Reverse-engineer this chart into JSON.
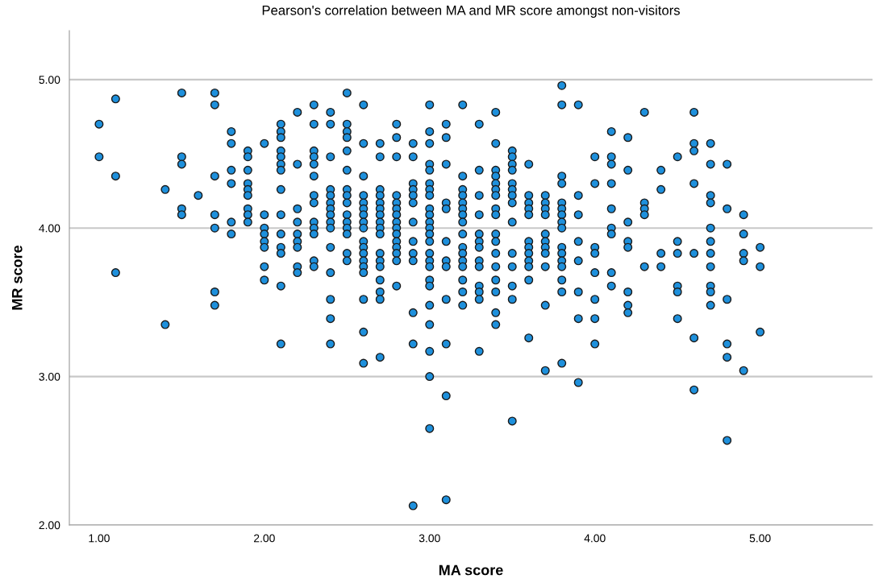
{
  "chart_data": {
    "type": "scatter",
    "title": "Pearson's correlation between MA and MR score amongst non-visitors",
    "xlabel": "MA score",
    "ylabel": "MR score",
    "xlim": [
      0.82,
      5.68
    ],
    "ylim": [
      2.0,
      5.33
    ],
    "xticks": [
      {
        "value": 1,
        "label": "1.00"
      },
      {
        "value": 2,
        "label": "2.00"
      },
      {
        "value": 3,
        "label": "3.00"
      },
      {
        "value": 4,
        "label": "4.00"
      },
      {
        "value": 5,
        "label": "5.00"
      }
    ],
    "yticks": [
      {
        "value": 2,
        "label": "2.00"
      },
      {
        "value": 3,
        "label": "3.00"
      },
      {
        "value": 4,
        "label": "4.00"
      },
      {
        "value": 5,
        "label": "5.00"
      }
    ],
    "grid": "y",
    "marker": "circle",
    "legend": false,
    "series": [
      {
        "color": "#1e90dc",
        "x": [
          1.0,
          1.0,
          1.1,
          1.1,
          1.1,
          1.4,
          1.4,
          1.5,
          1.5,
          1.5,
          1.5,
          1.5,
          1.6,
          1.7,
          1.7,
          1.7,
          1.7,
          1.7,
          1.7,
          1.7,
          1.8,
          1.8,
          1.8,
          1.8,
          1.8,
          1.8,
          1.9,
          1.9,
          1.9,
          1.9,
          1.9,
          1.9,
          1.9,
          1.9,
          1.9,
          2.0,
          2.0,
          2.0,
          2.0,
          2.0,
          2.0,
          2.0,
          2.0,
          2.1,
          2.1,
          2.1,
          2.1,
          2.1,
          2.1,
          2.1,
          2.1,
          2.1,
          2.1,
          2.1,
          2.1,
          2.1,
          2.1,
          2.2,
          2.2,
          2.2,
          2.2,
          2.2,
          2.2,
          2.2,
          2.2,
          2.2,
          2.3,
          2.3,
          2.3,
          2.3,
          2.3,
          2.3,
          2.3,
          2.3,
          2.3,
          2.3,
          2.3,
          2.3,
          2.3,
          2.4,
          2.4,
          2.4,
          2.4,
          2.4,
          2.4,
          2.4,
          2.4,
          2.4,
          2.4,
          2.4,
          2.4,
          2.4,
          2.4,
          2.4,
          2.5,
          2.5,
          2.5,
          2.5,
          2.5,
          2.5,
          2.5,
          2.5,
          2.5,
          2.5,
          2.5,
          2.5,
          2.5,
          2.5,
          2.5,
          2.6,
          2.6,
          2.6,
          2.6,
          2.6,
          2.6,
          2.6,
          2.6,
          2.6,
          2.6,
          2.6,
          2.6,
          2.6,
          2.6,
          2.6,
          2.6,
          2.6,
          2.6,
          2.7,
          2.7,
          2.7,
          2.7,
          2.7,
          2.7,
          2.7,
          2.7,
          2.7,
          2.7,
          2.7,
          2.7,
          2.7,
          2.7,
          2.7,
          2.7,
          2.7,
          2.8,
          2.8,
          2.8,
          2.8,
          2.8,
          2.8,
          2.8,
          2.8,
          2.8,
          2.8,
          2.8,
          2.8,
          2.8,
          2.8,
          2.8,
          2.9,
          2.9,
          2.9,
          2.9,
          2.9,
          2.9,
          2.9,
          2.9,
          2.9,
          2.9,
          2.9,
          2.9,
          2.9,
          3.0,
          3.0,
          3.0,
          3.0,
          3.0,
          3.0,
          3.0,
          3.0,
          3.0,
          3.0,
          3.0,
          3.0,
          3.0,
          3.0,
          3.0,
          3.0,
          3.0,
          3.0,
          3.0,
          3.0,
          3.0,
          3.0,
          3.0,
          3.0,
          3.1,
          3.1,
          3.1,
          3.1,
          3.1,
          3.1,
          3.1,
          3.1,
          3.1,
          3.1,
          3.1,
          3.1,
          3.2,
          3.2,
          3.2,
          3.2,
          3.2,
          3.2,
          3.2,
          3.2,
          3.2,
          3.2,
          3.2,
          3.2,
          3.2,
          3.2,
          3.2,
          3.2,
          3.3,
          3.3,
          3.3,
          3.3,
          3.3,
          3.3,
          3.3,
          3.3,
          3.3,
          3.3,
          3.3,
          3.3,
          3.3,
          3.4,
          3.4,
          3.4,
          3.4,
          3.4,
          3.4,
          3.4,
          3.4,
          3.4,
          3.4,
          3.4,
          3.4,
          3.4,
          3.4,
          3.4,
          3.4,
          3.4,
          3.5,
          3.5,
          3.5,
          3.5,
          3.5,
          3.5,
          3.5,
          3.5,
          3.5,
          3.5,
          3.5,
          3.5,
          3.5,
          3.5,
          3.6,
          3.6,
          3.6,
          3.6,
          3.6,
          3.6,
          3.6,
          3.6,
          3.6,
          3.6,
          3.6,
          3.6,
          3.7,
          3.7,
          3.7,
          3.7,
          3.7,
          3.7,
          3.7,
          3.7,
          3.7,
          3.7,
          3.7,
          3.8,
          3.8,
          3.8,
          3.8,
          3.8,
          3.8,
          3.8,
          3.8,
          3.8,
          3.8,
          3.8,
          3.8,
          3.8,
          3.8,
          3.8,
          3.8,
          3.9,
          3.9,
          3.9,
          3.9,
          3.9,
          3.9,
          3.9,
          3.9,
          4.0,
          4.0,
          4.0,
          4.0,
          4.0,
          4.0,
          4.0,
          4.0,
          4.1,
          4.1,
          4.1,
          4.1,
          4.1,
          4.1,
          4.1,
          4.1,
          4.1,
          4.2,
          4.2,
          4.2,
          4.2,
          4.2,
          4.2,
          4.2,
          4.2,
          4.3,
          4.3,
          4.3,
          4.3,
          4.3,
          4.4,
          4.4,
          4.4,
          4.4,
          4.5,
          4.5,
          4.5,
          4.5,
          4.5,
          4.5,
          4.6,
          4.6,
          4.6,
          4.6,
          4.6,
          4.6,
          4.6,
          4.7,
          4.7,
          4.7,
          4.7,
          4.7,
          4.7,
          4.7,
          4.7,
          4.7,
          4.7,
          4.7,
          4.8,
          4.8,
          4.8,
          4.8,
          4.8,
          4.8,
          4.9,
          4.9,
          4.9,
          4.9,
          4.9,
          5.0,
          5.0,
          5.0
        ],
        "values": [
          4.7,
          4.48,
          4.87,
          4.35,
          3.7,
          4.26,
          3.35,
          4.91,
          4.48,
          4.43,
          4.13,
          4.09,
          4.22,
          4.91,
          4.83,
          4.35,
          4.09,
          4.0,
          3.57,
          3.48,
          4.65,
          4.57,
          4.39,
          4.3,
          4.04,
          3.96,
          4.52,
          4.48,
          4.39,
          4.3,
          4.26,
          4.22,
          4.13,
          4.09,
          4.04,
          4.57,
          4.09,
          4.0,
          3.96,
          3.91,
          3.87,
          3.74,
          3.65,
          4.7,
          4.65,
          4.61,
          4.52,
          4.48,
          4.43,
          4.39,
          4.26,
          4.09,
          3.96,
          3.87,
          3.83,
          3.61,
          3.22,
          4.78,
          4.43,
          4.13,
          4.04,
          3.96,
          3.91,
          3.87,
          3.74,
          3.7,
          4.83,
          4.7,
          4.52,
          4.48,
          4.43,
          4.35,
          4.22,
          4.17,
          4.04,
          4.0,
          3.96,
          3.78,
          3.74,
          4.78,
          4.7,
          4.48,
          4.26,
          4.22,
          4.17,
          4.13,
          4.09,
          4.04,
          4.0,
          3.87,
          3.7,
          3.52,
          3.39,
          3.22,
          4.91,
          4.7,
          4.65,
          4.61,
          4.52,
          4.39,
          4.26,
          4.22,
          4.17,
          4.09,
          4.04,
          4.0,
          3.96,
          3.83,
          3.78,
          4.83,
          4.57,
          4.35,
          4.22,
          4.17,
          4.13,
          4.09,
          4.04,
          4.0,
          3.91,
          3.87,
          3.83,
          3.78,
          3.74,
          3.7,
          3.52,
          3.3,
          3.09,
          4.57,
          4.48,
          4.26,
          4.22,
          4.17,
          4.13,
          4.09,
          4.04,
          4.0,
          3.96,
          3.83,
          3.78,
          3.74,
          3.65,
          3.57,
          3.52,
          3.13,
          4.7,
          4.61,
          4.48,
          4.22,
          4.17,
          4.13,
          4.09,
          4.04,
          4.0,
          3.96,
          3.91,
          3.87,
          3.83,
          3.78,
          3.61,
          4.57,
          4.48,
          4.3,
          4.26,
          4.22,
          4.17,
          4.04,
          3.91,
          3.83,
          3.78,
          3.43,
          3.22,
          2.13,
          4.83,
          4.65,
          4.57,
          4.43,
          4.39,
          4.3,
          4.26,
          4.22,
          4.13,
          4.09,
          4.04,
          4.0,
          3.96,
          3.91,
          3.83,
          3.78,
          3.74,
          3.65,
          3.61,
          3.48,
          3.35,
          3.17,
          3.0,
          2.65,
          4.7,
          4.61,
          4.43,
          4.17,
          4.13,
          3.91,
          3.78,
          3.74,
          3.52,
          3.22,
          2.87,
          2.17,
          4.83,
          4.35,
          4.26,
          4.22,
          4.17,
          4.13,
          4.09,
          4.04,
          3.96,
          3.87,
          3.83,
          3.78,
          3.74,
          3.65,
          3.57,
          3.48,
          4.7,
          4.39,
          4.22,
          4.09,
          3.96,
          3.91,
          3.87,
          3.78,
          3.74,
          3.61,
          3.57,
          3.52,
          3.17,
          4.78,
          4.57,
          4.39,
          4.35,
          4.3,
          4.26,
          4.22,
          4.13,
          4.09,
          3.96,
          3.91,
          3.83,
          3.74,
          3.65,
          3.57,
          3.43,
          3.35,
          4.52,
          4.48,
          4.43,
          4.39,
          4.3,
          4.26,
          4.22,
          4.17,
          4.04,
          3.83,
          3.74,
          3.61,
          3.52,
          2.7,
          4.43,
          4.22,
          4.17,
          4.13,
          4.09,
          3.91,
          3.87,
          3.83,
          3.78,
          3.74,
          3.65,
          3.26,
          4.22,
          4.17,
          4.13,
          4.09,
          3.96,
          3.91,
          3.87,
          3.83,
          3.74,
          3.48,
          3.04,
          4.96,
          4.83,
          4.35,
          4.3,
          4.17,
          4.13,
          4.09,
          4.04,
          4.0,
          3.87,
          3.83,
          3.78,
          3.74,
          3.65,
          3.57,
          3.09,
          4.83,
          4.22,
          4.09,
          3.91,
          3.78,
          3.57,
          3.39,
          2.96,
          4.48,
          4.3,
          3.87,
          3.83,
          3.7,
          3.52,
          3.39,
          3.22,
          4.65,
          4.48,
          4.43,
          4.3,
          4.13,
          4.0,
          3.96,
          3.7,
          3.61,
          4.61,
          4.39,
          4.04,
          3.91,
          3.87,
          3.57,
          3.48,
          3.43,
          4.78,
          4.17,
          4.13,
          4.09,
          3.74,
          4.39,
          4.26,
          3.83,
          3.74,
          4.48,
          3.91,
          3.83,
          3.61,
          3.57,
          3.39,
          4.78,
          4.57,
          4.52,
          4.3,
          3.83,
          3.26,
          2.91,
          4.57,
          4.43,
          4.22,
          4.17,
          4.0,
          3.91,
          3.83,
          3.74,
          3.61,
          3.57,
          3.48,
          4.43,
          4.13,
          3.52,
          3.22,
          3.13,
          2.57,
          4.09,
          3.96,
          3.83,
          3.78,
          3.04,
          3.87,
          3.74,
          3.3
        ]
      }
    ]
  }
}
